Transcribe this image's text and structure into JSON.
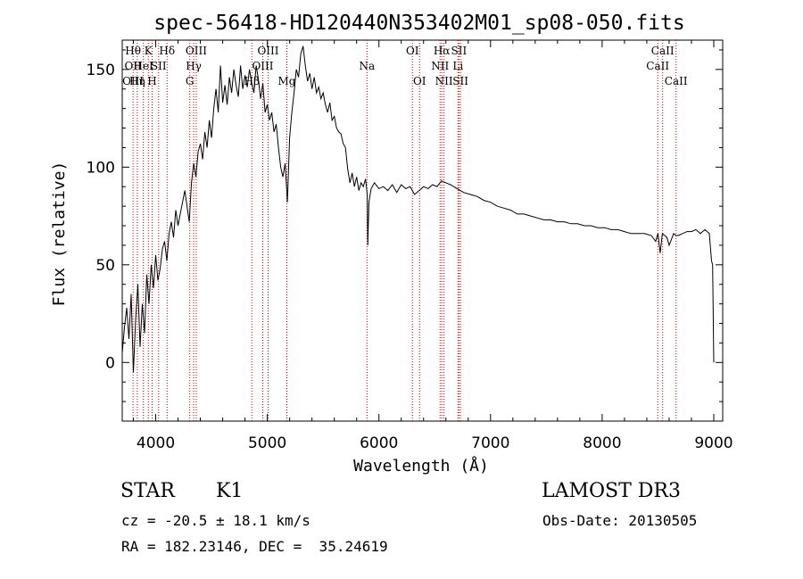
{
  "chart_data": {
    "type": "line",
    "title": "spec-56418-HD120440N353402M01_sp08-050.fits",
    "xlabel": "Wavelength (Å)",
    "ylabel": "Flux (relative)",
    "xlim": [
      3700,
      9080
    ],
    "ylim": [
      -30,
      165
    ],
    "xticks": [
      4000,
      5000,
      6000,
      7000,
      8000,
      9000
    ],
    "yticks": [
      0,
      50,
      100,
      150
    ],
    "grid": false,
    "line_color": "#000000",
    "marker_color": "#cc0000",
    "series": [
      {
        "x": [
          3700,
          3720,
          3740,
          3760,
          3780,
          3800,
          3820,
          3840,
          3860,
          3880,
          3900,
          3920,
          3940,
          3960,
          3980,
          4000,
          4020,
          4040,
          4060,
          4080,
          4100,
          4120,
          4140,
          4160,
          4180,
          4200,
          4220,
          4240,
          4260,
          4280,
          4300,
          4320,
          4340,
          4360,
          4380,
          4400,
          4420,
          4440,
          4460,
          4480,
          4500,
          4520,
          4540,
          4560,
          4580,
          4600,
          4620,
          4640,
          4660,
          4680,
          4700,
          4720,
          4740,
          4760,
          4780,
          4800,
          4820,
          4840,
          4860,
          4880,
          4900,
          4920,
          4940,
          4960,
          4980,
          5000,
          5020,
          5040,
          5060,
          5080,
          5100,
          5120,
          5140,
          5160,
          5180,
          5200,
          5220,
          5240,
          5260,
          5280,
          5300,
          5320,
          5340,
          5360,
          5380,
          5400,
          5420,
          5440,
          5460,
          5480,
          5500,
          5520,
          5540,
          5560,
          5580,
          5600,
          5620,
          5640,
          5660,
          5680,
          5700,
          5720,
          5740,
          5760,
          5780,
          5800,
          5820,
          5840,
          5860,
          5880,
          5895,
          5900,
          5910,
          5930,
          5960,
          6000,
          6040,
          6080,
          6120,
          6160,
          6200,
          6240,
          6280,
          6320,
          6360,
          6400,
          6440,
          6480,
          6520,
          6560,
          6600,
          6640,
          6700,
          6760,
          6820,
          6880,
          6940,
          7000,
          7060,
          7120,
          7180,
          7240,
          7300,
          7360,
          7420,
          7480,
          7540,
          7600,
          7660,
          7720,
          7780,
          7840,
          7900,
          7960,
          8020,
          8080,
          8140,
          8200,
          8260,
          8320,
          8380,
          8440,
          8480,
          8500,
          8520,
          8540,
          8560,
          8580,
          8600,
          8640,
          8660,
          8680,
          8720,
          8760,
          8800,
          8840,
          8880,
          8920,
          8960,
          8980,
          8990,
          9000
        ],
        "y": [
          5,
          18,
          28,
          12,
          35,
          -5,
          22,
          40,
          8,
          30,
          15,
          45,
          30,
          50,
          38,
          55,
          42,
          48,
          58,
          62,
          52,
          66,
          72,
          64,
          78,
          70,
          76,
          82,
          88,
          80,
          72,
          92,
          102,
          95,
          108,
          112,
          104,
          118,
          110,
          124,
          115,
          130,
          140,
          128,
          152,
          133,
          142,
          132,
          146,
          138,
          150,
          142,
          136,
          152,
          140,
          147,
          141,
          150,
          143,
          138,
          152,
          145,
          135,
          143,
          128,
          132,
          124,
          128,
          118,
          122,
          110,
          100,
          95,
          102,
          82,
          115,
          128,
          138,
          150,
          146,
          158,
          162,
          152,
          144,
          148,
          140,
          146,
          138,
          141,
          135,
          138,
          132,
          128,
          133,
          124,
          126,
          120,
          118,
          117,
          112,
          110,
          99,
          92,
          97,
          90,
          95,
          88,
          92,
          90,
          94,
          86,
          60,
          82,
          89,
          92,
          89,
          90,
          88,
          91,
          87,
          91,
          89,
          90,
          86,
          88,
          90,
          89,
          91,
          90,
          93,
          92,
          91,
          89,
          87,
          86,
          85,
          83,
          82,
          80,
          79,
          78,
          76,
          76,
          75,
          74,
          73,
          73,
          72,
          72,
          71,
          71,
          70,
          70,
          69,
          69,
          68,
          68,
          67,
          66,
          66,
          66,
          65,
          62,
          66,
          56,
          66,
          65,
          64,
          60,
          66,
          65,
          65,
          66,
          67,
          67,
          68,
          66,
          68,
          66,
          52,
          50,
          0
        ]
      }
    ],
    "line_markers": [
      {
        "x": 3797,
        "labels": [
          "Hθ",
          "OII",
          "OIII"
        ],
        "rows": [
          0,
          1,
          2
        ]
      },
      {
        "x": 3835,
        "labels": [
          "Hη"
        ],
        "rows": [
          2
        ]
      },
      {
        "x": 3889,
        "labels": [
          "HeI"
        ],
        "rows": [
          1
        ]
      },
      {
        "x": 3934,
        "labels": [
          "K"
        ],
        "rows": [
          0
        ]
      },
      {
        "x": 3968,
        "labels": [
          "H"
        ],
        "rows": [
          2
        ]
      },
      {
        "x": 4026,
        "labels": [
          "SII"
        ],
        "rows": [
          1
        ]
      },
      {
        "x": 4102,
        "labels": [
          "Hδ"
        ],
        "rows": [
          0
        ]
      },
      {
        "x": 4305,
        "labels": [
          "G"
        ],
        "rows": [
          2
        ]
      },
      {
        "x": 4340,
        "labels": [
          "Hγ"
        ],
        "rows": [
          1
        ]
      },
      {
        "x": 4363,
        "labels": [
          "OIII"
        ],
        "rows": [
          0
        ]
      },
      {
        "x": 4861,
        "labels": [
          "Hβ"
        ],
        "rows": [
          2
        ]
      },
      {
        "x": 4959,
        "labels": [
          "OIII"
        ],
        "rows": [
          1
        ]
      },
      {
        "x": 5007,
        "labels": [
          "OIII"
        ],
        "rows": [
          0
        ]
      },
      {
        "x": 5175,
        "labels": [
          "Mg"
        ],
        "rows": [
          2
        ]
      },
      {
        "x": 5893,
        "labels": [
          "Na"
        ],
        "rows": [
          1
        ]
      },
      {
        "x": 6300,
        "labels": [
          "OI"
        ],
        "rows": [
          0
        ]
      },
      {
        "x": 6364,
        "labels": [
          "OI"
        ],
        "rows": [
          2
        ]
      },
      {
        "x": 6548,
        "labels": [
          "NII"
        ],
        "rows": [
          1
        ]
      },
      {
        "x": 6563,
        "labels": [
          "Hα"
        ],
        "rows": [
          0
        ]
      },
      {
        "x": 6583,
        "labels": [
          "NII"
        ],
        "rows": [
          2
        ]
      },
      {
        "x": 6708,
        "labels": [
          "Li"
        ],
        "rows": [
          1
        ]
      },
      {
        "x": 6717,
        "labels": [
          "SII"
        ],
        "rows": [
          0
        ]
      },
      {
        "x": 6731,
        "labels": [
          "SII"
        ],
        "rows": [
          2
        ]
      },
      {
        "x": 8498,
        "labels": [
          "CaII"
        ],
        "rows": [
          1
        ]
      },
      {
        "x": 8542,
        "labels": [
          "CaII"
        ],
        "rows": [
          0
        ]
      },
      {
        "x": 8662,
        "labels": [
          "CaII"
        ],
        "rows": [
          2
        ]
      }
    ]
  },
  "info": {
    "class_label": "STAR",
    "subclass_label": "K1",
    "survey_label": "LAMOST DR3",
    "cz_text": "cz = -20.5 ± 18.1 km/s",
    "obs_date_text": "Obs-Date: 20130505",
    "radec_text": "RA = 182.23146, DEC =  35.24619"
  }
}
